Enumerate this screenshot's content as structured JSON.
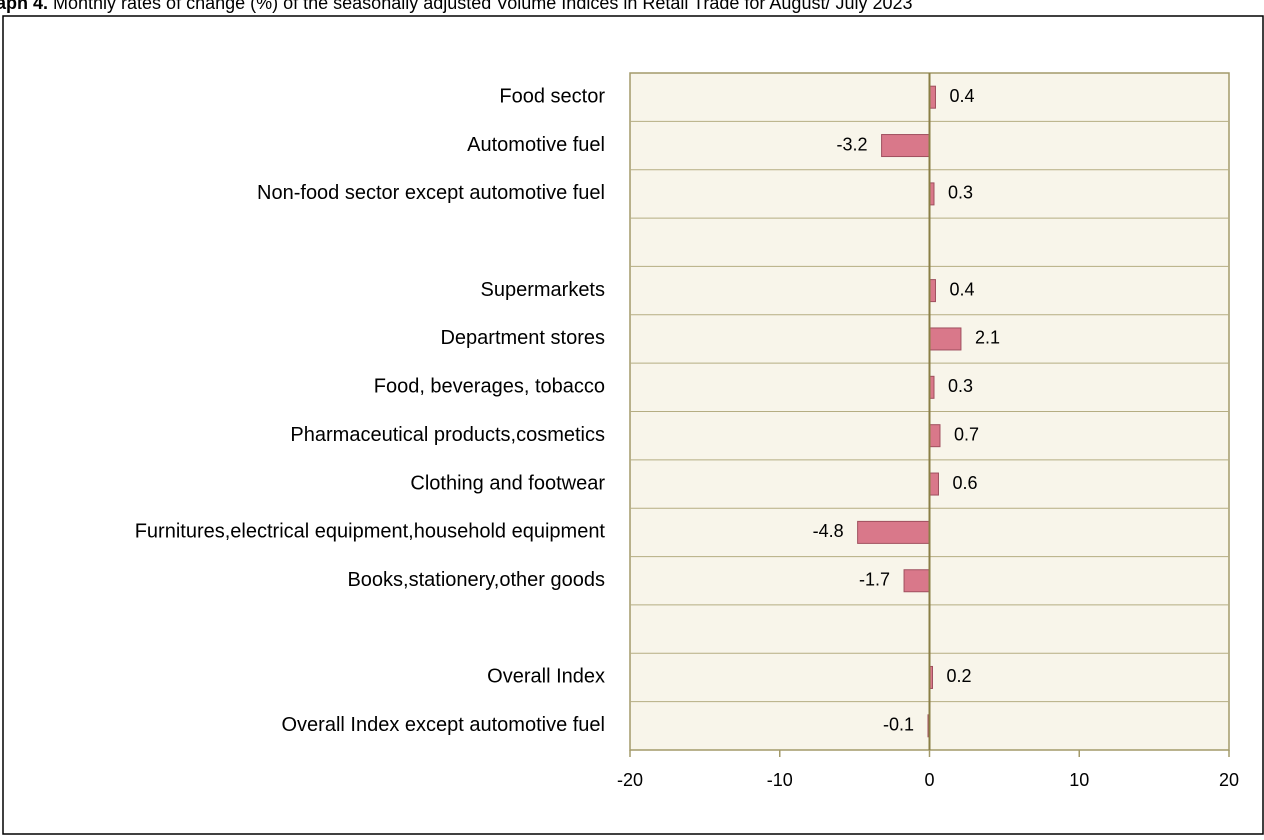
{
  "chart_data": {
    "type": "hbar",
    "title_label": "aph 4.",
    "title": "Monthly rates of change (%) of the seasonally adjusted Volume Indices in Retail Trade for August/ July 2023",
    "categories": [
      "Food sector",
      "Automotive fuel",
      "Non-food sector except automotive fuel",
      null,
      "Supermarkets",
      "Department stores",
      "Food, beverages, tobacco",
      "Pharmaceutical products,cosmetics",
      "Clothing and footwear",
      "Furnitures,electrical equipment,household equipment",
      "Books,stationery,other goods",
      null,
      "Overall Index",
      "Overall Index except automotive fuel"
    ],
    "values": [
      0.4,
      -3.2,
      0.3,
      null,
      0.4,
      2.1,
      0.3,
      0.7,
      0.6,
      -4.8,
      -1.7,
      null,
      0.2,
      -0.1
    ],
    "color": "#d9788a",
    "xlim": [
      -20,
      20
    ],
    "xticks": [
      -20,
      -10,
      0,
      10,
      20
    ]
  }
}
